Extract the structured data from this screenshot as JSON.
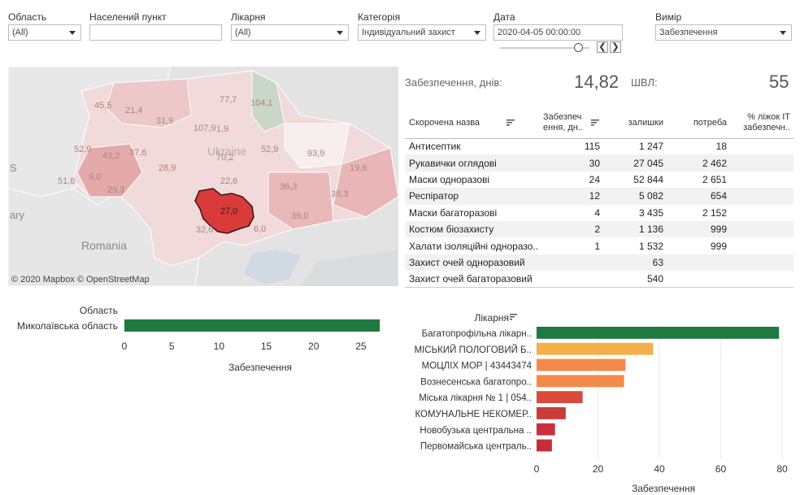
{
  "filters": {
    "oblast": {
      "label": "Область",
      "value": "(All)"
    },
    "settlement": {
      "label": "Населений пункт",
      "value": ""
    },
    "hospital": {
      "label": "Лікарня",
      "value": "(All)"
    },
    "category": {
      "label": "Категорія",
      "value": "Індивідуальний захист"
    },
    "date": {
      "label": "Дата",
      "value": "2020-04-05 00:00:00"
    },
    "measure": {
      "label": "Вимір",
      "value": "Забезпечення"
    }
  },
  "date_slider": {
    "prev": "❮",
    "next": "❯"
  },
  "map": {
    "copyright": "© 2020 Mapbox © OpenStreetMap",
    "country_label": "Ukraine",
    "neighbor_labels": [
      "Romania",
      "ary",
      "S"
    ],
    "region_values": [
      "45,5",
      "21,4",
      "31,9",
      "77,7",
      "104,1",
      "107,9",
      "1,9",
      "52,9",
      "43,2",
      "37,6",
      "28,9",
      "70,2",
      "52,9",
      "93,9",
      "9,0",
      "51,8",
      "29,3",
      "22,6",
      "19,6",
      "36,3",
      "35,3",
      "27,0",
      "39,0",
      "32,6",
      "6,0"
    ],
    "highlighted": {
      "label": "27,0",
      "color": "#d93b3b"
    }
  },
  "kpi": {
    "supply_label": "Забезпечення, днів:",
    "supply_value": "14,82",
    "shvl_label": "ШВЛ:",
    "shvl_value": "55"
  },
  "table": {
    "headers": [
      "Скорочена назва",
      "Забезпеч ення, дн..",
      "залишки",
      "потреба",
      "% ліжок ІТ забезпечн.."
    ],
    "rows": [
      {
        "name": "Антисептик",
        "days": "115",
        "stock": "1 247",
        "need": "18",
        "pct": ""
      },
      {
        "name": "Рукавички оглядові",
        "days": "30",
        "stock": "27 045",
        "need": "2 462",
        "pct": ""
      },
      {
        "name": "Маски одноразові",
        "days": "24",
        "stock": "52 844",
        "need": "2 651",
        "pct": ""
      },
      {
        "name": "Респіратор",
        "days": "12",
        "stock": "5 082",
        "need": "654",
        "pct": ""
      },
      {
        "name": "Маски багаторазові",
        "days": "4",
        "stock": "3 435",
        "need": "2 152",
        "pct": ""
      },
      {
        "name": "Костюм біозахисту",
        "days": "2",
        "stock": "1 136",
        "need": "999",
        "pct": ""
      },
      {
        "name": "Халати ізоляційні одноразо..",
        "days": "1",
        "stock": "1 532",
        "need": "999",
        "pct": ""
      },
      {
        "name": "Захист очей одноразовий",
        "days": "",
        "stock": "63",
        "need": "",
        "pct": ""
      },
      {
        "name": "Захист очей багаторазовий",
        "days": "",
        "stock": "540",
        "need": "",
        "pct": ""
      }
    ]
  },
  "chart_data": [
    {
      "type": "bar",
      "title": "Область",
      "categories": [
        "Миколаївська область"
      ],
      "values": [
        27
      ],
      "colors": [
        "#1e7a3e"
      ],
      "xlabel": "Забезпечення",
      "xlim": [
        0,
        27.5
      ],
      "ticks": [
        0,
        5,
        10,
        15,
        20,
        25
      ]
    },
    {
      "type": "bar",
      "title": "Лікарня",
      "categories": [
        "Багатопрофільна лікарн..",
        "МІСЬКИЙ ПОЛОГОВИЙ Б..",
        "МОЦЛІХ МОР | 43443474",
        "Вознесенська багатопро..",
        "Міська лікарня № 1 | 054..",
        "КОМУНАЛЬНЕ НЕКОМЕР..",
        "Новобузька центральна ..",
        "Первомайська централь.."
      ],
      "values": [
        79,
        38,
        29,
        28.5,
        15,
        9.5,
        6,
        5
      ],
      "colors": [
        "#1e7a3e",
        "#f5b04b",
        "#f28b4a",
        "#f28b4a",
        "#d94a3d",
        "#cc3a3a",
        "#c9303e",
        "#c72c3c"
      ],
      "xlabel": "Забезпечення",
      "xlim": [
        0,
        80
      ],
      "ticks": [
        0,
        20,
        40,
        60,
        80
      ]
    }
  ]
}
